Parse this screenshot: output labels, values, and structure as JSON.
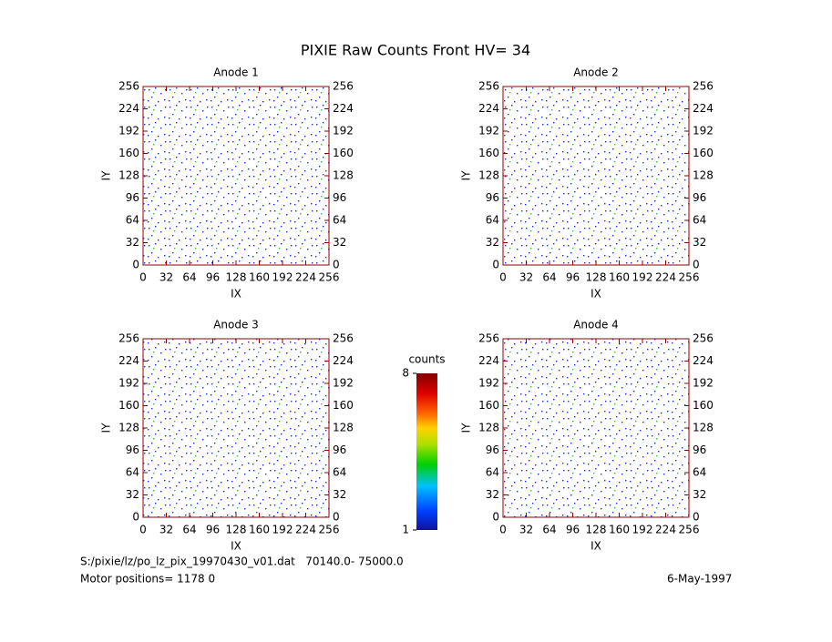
{
  "title": "PIXIE Raw Counts Front HV= 34",
  "chart_data": [
    {
      "type": "heatmap",
      "title": "Anode 1",
      "xlabel": "IX",
      "ylabel": "IY",
      "xlim": [
        0,
        256
      ],
      "ylim": [
        0,
        256
      ],
      "xticks": [
        0,
        32,
        64,
        96,
        128,
        160,
        192,
        224,
        256
      ],
      "yticks": [
        0,
        32,
        64,
        96,
        128,
        160,
        192,
        224,
        256
      ]
    },
    {
      "type": "heatmap",
      "title": "Anode 2",
      "xlabel": "IX",
      "ylabel": "IY",
      "xlim": [
        0,
        256
      ],
      "ylim": [
        0,
        256
      ],
      "xticks": [
        0,
        32,
        64,
        96,
        128,
        160,
        192,
        224,
        256
      ],
      "yticks": [
        0,
        32,
        64,
        96,
        128,
        160,
        192,
        224,
        256
      ]
    },
    {
      "type": "heatmap",
      "title": "Anode 3",
      "xlabel": "IX",
      "ylabel": "IY",
      "xlim": [
        0,
        256
      ],
      "ylim": [
        0,
        256
      ],
      "xticks": [
        0,
        32,
        64,
        96,
        128,
        160,
        192,
        224,
        256
      ],
      "yticks": [
        0,
        32,
        64,
        96,
        128,
        160,
        192,
        224,
        256
      ]
    },
    {
      "type": "heatmap",
      "title": "Anode 4",
      "xlabel": "IX",
      "ylabel": "IY",
      "xlim": [
        0,
        256
      ],
      "ylim": [
        0,
        256
      ],
      "xticks": [
        0,
        32,
        64,
        96,
        128,
        160,
        192,
        224,
        256
      ],
      "yticks": [
        0,
        32,
        64,
        96,
        128,
        160,
        192,
        224,
        256
      ]
    }
  ],
  "colorbar": {
    "title": "counts",
    "lim": [
      1,
      8
    ],
    "ticks": [
      1,
      8
    ]
  },
  "footer": {
    "file": "S:/pixie/lz/po_lz_pix_19970430_v01.dat   70140.0- 75000.0",
    "motor": "Motor positions= 1178 0",
    "date": "6-May-1997"
  }
}
